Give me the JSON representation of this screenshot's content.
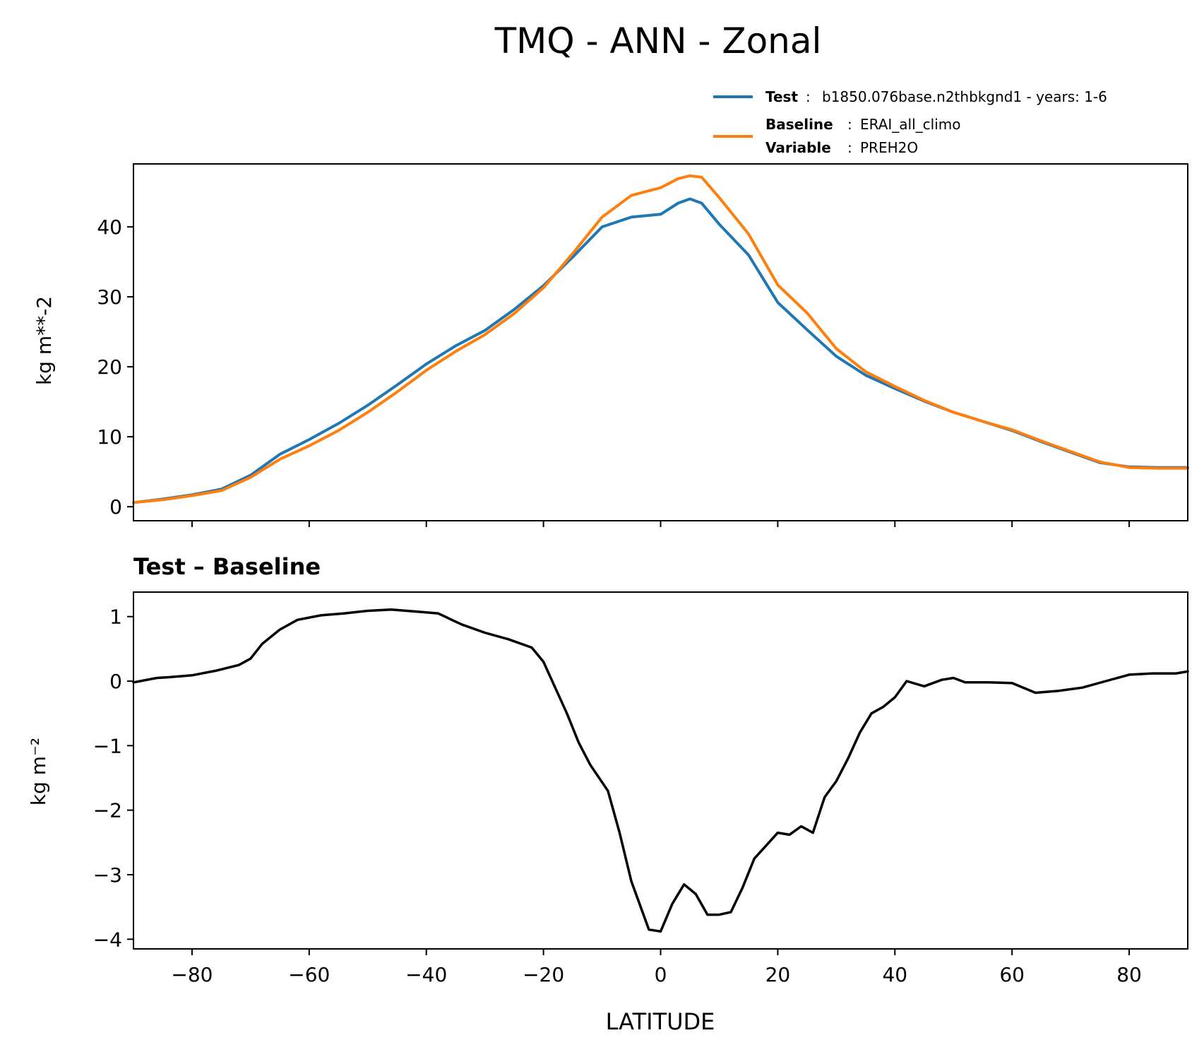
{
  "figure": {
    "title": "TMQ - ANN - Zonal",
    "legend": {
      "test_key": "Test",
      "test_value": "b1850.076base.n2thbkgnd1 - years: 1-6",
      "baseline_key": "Baseline",
      "baseline_value": "ERAI_all_climo",
      "variable_key": "Variable",
      "variable_value": "PREH2O"
    }
  },
  "chart_data": [
    {
      "type": "line",
      "ylabel": "kg m**-2",
      "xlim": [
        -90,
        90
      ],
      "ylim": [
        -2,
        49
      ],
      "yticks": [
        0,
        10,
        20,
        30,
        40
      ],
      "xticks": [
        -80,
        -60,
        -40,
        -20,
        0,
        20,
        40,
        60,
        80
      ],
      "grid": false,
      "legend_position": "above-right",
      "x": [
        -90,
        -85,
        -80,
        -75,
        -70,
        -65,
        -60,
        -55,
        -50,
        -45,
        -40,
        -35,
        -30,
        -25,
        -20,
        -15,
        -10,
        -5,
        0,
        3,
        5,
        7,
        10,
        15,
        20,
        25,
        30,
        35,
        40,
        45,
        50,
        55,
        60,
        65,
        70,
        75,
        80,
        85,
        90
      ],
      "series": [
        {
          "name": "Test",
          "color": "#1f77b4",
          "values": [
            0.6,
            1.1,
            1.7,
            2.5,
            4.5,
            7.5,
            9.6,
            11.9,
            14.5,
            17.4,
            20.4,
            23.0,
            25.2,
            28.2,
            31.6,
            35.7,
            40.0,
            41.4,
            41.8,
            43.4,
            44.0,
            43.4,
            40.4,
            36.0,
            29.2,
            25.3,
            21.5,
            18.8,
            16.9,
            15.1,
            13.5,
            12.2,
            10.9,
            9.3,
            7.8,
            6.3,
            5.7,
            5.6,
            5.6
          ]
        },
        {
          "name": "Baseline",
          "color": "#ff7f0e",
          "values": [
            0.6,
            1.0,
            1.6,
            2.3,
            4.2,
            6.8,
            8.7,
            10.9,
            13.5,
            16.4,
            19.5,
            22.2,
            24.6,
            27.6,
            31.3,
            36.2,
            41.4,
            44.5,
            45.6,
            46.9,
            47.3,
            47.1,
            44.2,
            39.0,
            31.7,
            27.7,
            22.6,
            19.3,
            17.2,
            15.2,
            13.5,
            12.2,
            11.0,
            9.4,
            7.9,
            6.4,
            5.6,
            5.5,
            5.5
          ]
        }
      ]
    },
    {
      "type": "line",
      "title": "Test – Baseline",
      "xlabel": "LATITUDE",
      "ylabel": "kg m⁻²",
      "xlim": [
        -90,
        90
      ],
      "ylim": [
        -4.15,
        1.38
      ],
      "yticks": [
        -4,
        -3,
        -2,
        -1,
        0,
        1
      ],
      "xticks": [
        -80,
        -60,
        -40,
        -20,
        0,
        20,
        40,
        60,
        80
      ],
      "grid": false,
      "x": [
        -90,
        -86,
        -84,
        -80,
        -76,
        -72,
        -70,
        -68,
        -65,
        -62,
        -58,
        -54,
        -50,
        -46,
        -42,
        -38,
        -34,
        -30,
        -26,
        -22,
        -20,
        -18,
        -16,
        -14,
        -12,
        -9,
        -7,
        -5,
        -2,
        0,
        2,
        4,
        6,
        8,
        10,
        12,
        14,
        16,
        18,
        20,
        22,
        24,
        26,
        28,
        30,
        32,
        34,
        36,
        38,
        40,
        42,
        45,
        48,
        50,
        52,
        56,
        60,
        64,
        68,
        72,
        76,
        80,
        84,
        88,
        90
      ],
      "series": [
        {
          "name": "Test – Baseline",
          "color": "#000000",
          "values": [
            -0.02,
            0.05,
            0.06,
            0.09,
            0.16,
            0.25,
            0.35,
            0.58,
            0.8,
            0.95,
            1.02,
            1.05,
            1.09,
            1.11,
            1.08,
            1.05,
            0.88,
            0.75,
            0.65,
            0.52,
            0.3,
            -0.1,
            -0.5,
            -0.95,
            -1.3,
            -1.7,
            -2.35,
            -3.1,
            -3.85,
            -3.88,
            -3.45,
            -3.15,
            -3.3,
            -3.62,
            -3.62,
            -3.58,
            -3.2,
            -2.75,
            -2.55,
            -2.35,
            -2.38,
            -2.25,
            -2.35,
            -1.8,
            -1.55,
            -1.2,
            -0.8,
            -0.5,
            -0.4,
            -0.25,
            0.0,
            -0.08,
            0.02,
            0.05,
            -0.02,
            -0.02,
            -0.03,
            -0.18,
            -0.15,
            -0.1,
            0.0,
            0.1,
            0.12,
            0.12,
            0.15
          ]
        }
      ]
    }
  ]
}
